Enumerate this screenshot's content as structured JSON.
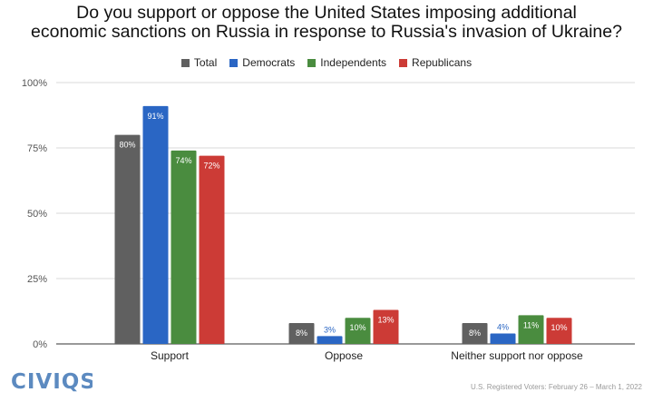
{
  "title_line1": "Do you support or oppose the United States imposing additional",
  "title_line2": "economic sanctions on Russia in response to Russia's invasion of Ukraine?",
  "brand": "CIVIQS",
  "source_note": "U.S. Registered Voters: February 26 – March 1, 2022",
  "chart_data": {
    "type": "bar",
    "categories": [
      "Support",
      "Oppose",
      "Neither support nor oppose"
    ],
    "series": [
      {
        "name": "Total",
        "color": "#606060",
        "values": [
          80,
          8,
          8
        ],
        "labels": [
          "80%",
          "8%",
          "8%"
        ]
      },
      {
        "name": "Democrats",
        "color": "#2a66c4",
        "values": [
          91,
          3,
          4
        ],
        "labels": [
          "91%",
          "3%",
          "4%"
        ]
      },
      {
        "name": "Independents",
        "color": "#4a8c3f",
        "values": [
          74,
          10,
          11
        ],
        "labels": [
          "74%",
          "10%",
          "11%"
        ]
      },
      {
        "name": "Republicans",
        "color": "#cc3b36",
        "values": [
          72,
          13,
          10
        ],
        "labels": [
          "72%",
          "13%",
          "10%"
        ]
      }
    ],
    "yticks": [
      0,
      25,
      50,
      75,
      100
    ],
    "ytick_labels": [
      "0%",
      "25%",
      "50%",
      "75%",
      "100%"
    ],
    "ylim": [
      0,
      100
    ],
    "grid": true,
    "legend_position": "top"
  }
}
